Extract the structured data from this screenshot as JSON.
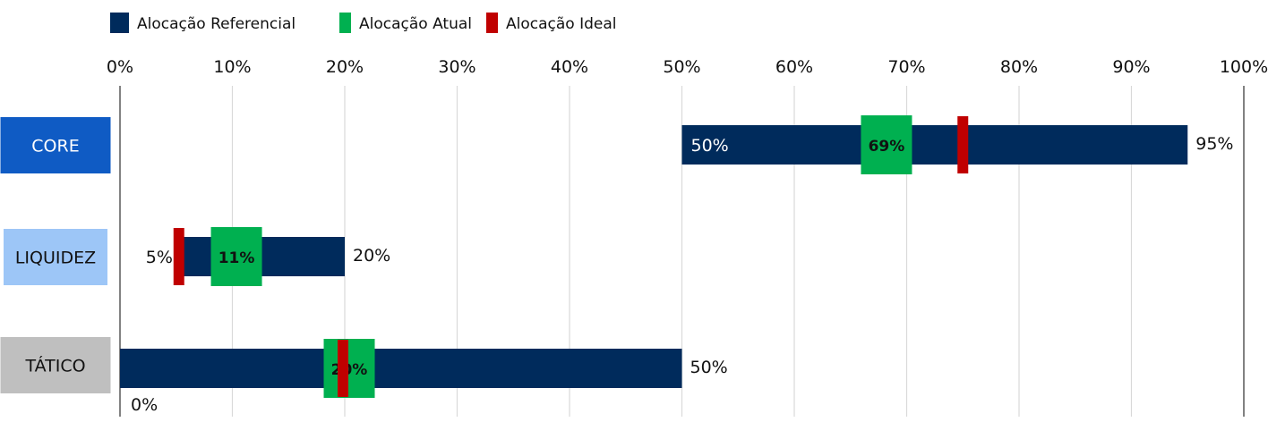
{
  "chart_data": {
    "type": "bar",
    "orientation": "horizontal-range",
    "xlim": [
      0,
      100
    ],
    "x_ticks": [
      0,
      10,
      20,
      30,
      40,
      50,
      60,
      70,
      80,
      90,
      100
    ],
    "x_tick_labels": [
      "0%",
      "10%",
      "20%",
      "30%",
      "40%",
      "50%",
      "60%",
      "70%",
      "80%",
      "90%",
      "100%"
    ],
    "grid": true,
    "legend": {
      "placement": "top-left",
      "entries": [
        {
          "name": "Alocação Referencial",
          "color": "#002b5c"
        },
        {
          "name": "Alocação Atual",
          "color": "#00b050"
        },
        {
          "name": "Alocação Ideal",
          "color": "#c00000"
        }
      ]
    },
    "categories": [
      {
        "name": "CORE",
        "color": "#0f5bc4",
        "text_color": "#ffffff",
        "min": 50,
        "max": 95,
        "atual": 69,
        "ideal": 75,
        "min_label": "50%",
        "max_label": "95%",
        "atual_label": "69%"
      },
      {
        "name": "LIQUIDEZ",
        "color": "#9dc6f7",
        "text_color": "#111111",
        "min": 5,
        "max": 20,
        "atual": 11,
        "ideal": 5,
        "min_label": "5%",
        "max_label": "20%",
        "atual_label": "11%"
      },
      {
        "name": "TÁTICO",
        "color": "#bfbfbf",
        "text_color": "#111111",
        "min": 0,
        "max": 50,
        "atual": 20,
        "ideal": 20,
        "min_label": "0%",
        "max_label": "50%",
        "atual_label": "20%"
      }
    ]
  }
}
